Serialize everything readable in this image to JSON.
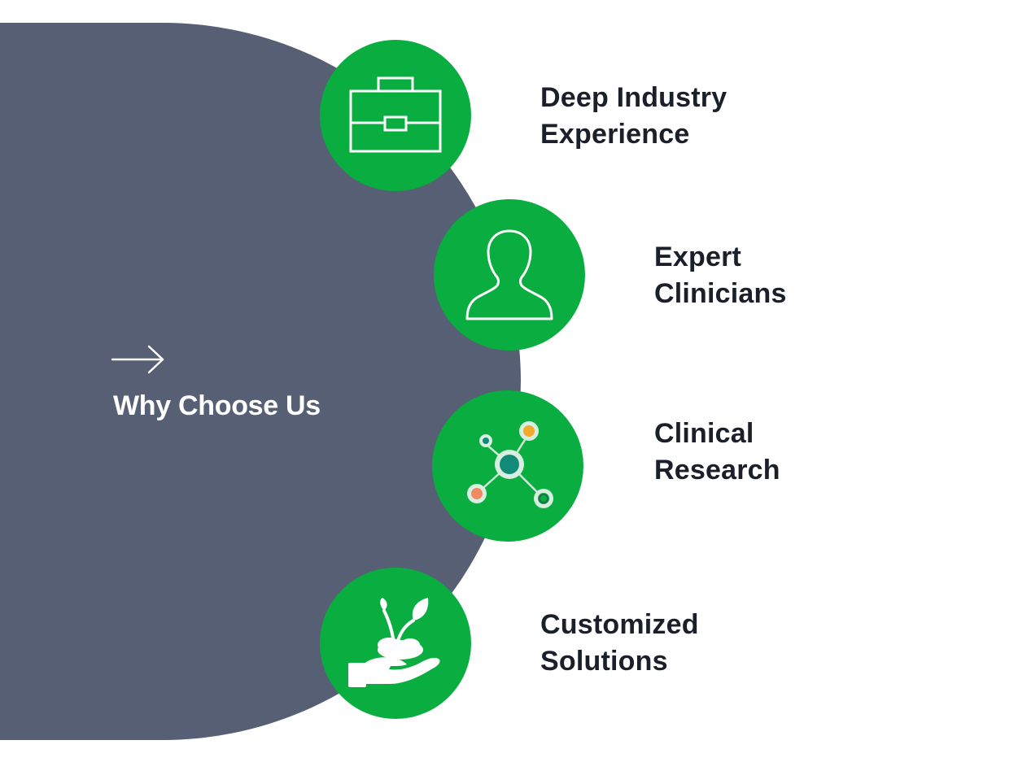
{
  "intro": {
    "arrow_icon": "arrow-right-icon",
    "headline": "Why Choose Us"
  },
  "features": [
    {
      "icon": "briefcase-icon",
      "line1": "Deep Industry",
      "line2": "Experience"
    },
    {
      "icon": "person-icon",
      "line1": "Expert",
      "line2": "Clinicians"
    },
    {
      "icon": "molecule-network-icon",
      "line1": "Clinical",
      "line2": "Research"
    },
    {
      "icon": "hand-with-plant-icon",
      "line1": "Customized",
      "line2": "Solutions"
    }
  ],
  "colors": {
    "panel": "#565f73",
    "circle": "#0aad3f",
    "text_dark": "#1b1f2a",
    "text_light": "#ffffff"
  }
}
